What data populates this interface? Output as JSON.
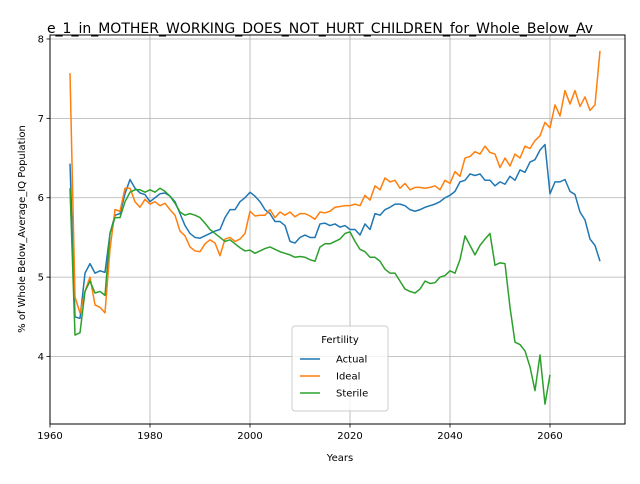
{
  "chart_data": {
    "type": "line",
    "title": "e_1_in_MOTHER_WORKING_DOES_NOT_HURT_CHILDREN_for_Whole_Below_Av",
    "xlabel": "Years",
    "ylabel": "% of Whole Below_Average_IQ Population",
    "xlim": [
      1960,
      2075
    ],
    "ylim": [
      3.15,
      8.05
    ],
    "xticks": [
      1960,
      1980,
      2000,
      2020,
      2040,
      2060
    ],
    "yticks": [
      4,
      5,
      6,
      7,
      8
    ],
    "grid": true,
    "legend": {
      "title": "Fertility",
      "placement": "lower center"
    },
    "series": [
      {
        "name": "Actual",
        "color": "#1f77b4",
        "points": [
          [
            1964,
            6.43
          ],
          [
            1965,
            4.5
          ],
          [
            1966,
            4.48
          ],
          [
            1967,
            5.05
          ],
          [
            1968,
            5.17
          ],
          [
            1969,
            5.05
          ],
          [
            1970,
            5.08
          ],
          [
            1971,
            5.06
          ],
          [
            1972,
            5.55
          ],
          [
            1973,
            5.78
          ],
          [
            1974,
            5.8
          ],
          [
            1975,
            6.05
          ],
          [
            1976,
            6.23
          ],
          [
            1977,
            6.12
          ],
          [
            1978,
            6.06
          ],
          [
            1979,
            6.04
          ],
          [
            1980,
            5.95
          ],
          [
            1981,
            6.0
          ],
          [
            1982,
            6.05
          ],
          [
            1983,
            6.06
          ],
          [
            1984,
            6.02
          ],
          [
            1985,
            5.95
          ],
          [
            1986,
            5.8
          ],
          [
            1987,
            5.65
          ],
          [
            1988,
            5.55
          ],
          [
            1989,
            5.5
          ],
          [
            1990,
            5.49
          ],
          [
            1991,
            5.52
          ],
          [
            1992,
            5.55
          ],
          [
            1993,
            5.58
          ],
          [
            1994,
            5.6
          ],
          [
            1995,
            5.75
          ],
          [
            1996,
            5.85
          ],
          [
            1997,
            5.85
          ],
          [
            1998,
            5.95
          ],
          [
            1999,
            6.0
          ],
          [
            2000,
            6.07
          ],
          [
            2001,
            6.02
          ],
          [
            2002,
            5.95
          ],
          [
            2003,
            5.85
          ],
          [
            2004,
            5.8
          ],
          [
            2005,
            5.7
          ],
          [
            2006,
            5.7
          ],
          [
            2007,
            5.65
          ],
          [
            2008,
            5.45
          ],
          [
            2009,
            5.43
          ],
          [
            2010,
            5.5
          ],
          [
            2011,
            5.53
          ],
          [
            2012,
            5.5
          ],
          [
            2013,
            5.5
          ],
          [
            2014,
            5.67
          ],
          [
            2015,
            5.68
          ],
          [
            2016,
            5.65
          ],
          [
            2017,
            5.67
          ],
          [
            2018,
            5.63
          ],
          [
            2019,
            5.65
          ],
          [
            2020,
            5.6
          ],
          [
            2021,
            5.6
          ],
          [
            2022,
            5.53
          ],
          [
            2023,
            5.67
          ],
          [
            2024,
            5.6
          ],
          [
            2025,
            5.8
          ],
          [
            2026,
            5.78
          ],
          [
            2027,
            5.85
          ],
          [
            2028,
            5.88
          ],
          [
            2029,
            5.92
          ],
          [
            2030,
            5.92
          ],
          [
            2031,
            5.9
          ],
          [
            2032,
            5.85
          ],
          [
            2033,
            5.83
          ],
          [
            2034,
            5.85
          ],
          [
            2035,
            5.88
          ],
          [
            2036,
            5.9
          ],
          [
            2037,
            5.92
          ],
          [
            2038,
            5.95
          ],
          [
            2039,
            6.0
          ],
          [
            2040,
            6.03
          ],
          [
            2041,
            6.08
          ],
          [
            2042,
            6.2
          ],
          [
            2043,
            6.22
          ],
          [
            2044,
            6.3
          ],
          [
            2045,
            6.28
          ],
          [
            2046,
            6.3
          ],
          [
            2047,
            6.22
          ],
          [
            2048,
            6.22
          ],
          [
            2049,
            6.15
          ],
          [
            2050,
            6.2
          ],
          [
            2051,
            6.17
          ],
          [
            2052,
            6.27
          ],
          [
            2053,
            6.22
          ],
          [
            2054,
            6.35
          ],
          [
            2055,
            6.32
          ],
          [
            2056,
            6.45
          ],
          [
            2057,
            6.48
          ],
          [
            2058,
            6.6
          ],
          [
            2059,
            6.67
          ],
          [
            2060,
            6.05
          ],
          [
            2061,
            6.2
          ],
          [
            2062,
            6.2
          ],
          [
            2063,
            6.23
          ],
          [
            2064,
            6.08
          ],
          [
            2065,
            6.04
          ],
          [
            2066,
            5.82
          ],
          [
            2067,
            5.72
          ],
          [
            2068,
            5.48
          ],
          [
            2069,
            5.4
          ],
          [
            2070,
            5.2
          ]
        ]
      },
      {
        "name": "Ideal",
        "color": "#ff7f0e",
        "points": [
          [
            1964,
            7.57
          ],
          [
            1965,
            4.75
          ],
          [
            1966,
            4.55
          ],
          [
            1967,
            4.82
          ],
          [
            1968,
            5.0
          ],
          [
            1969,
            4.65
          ],
          [
            1970,
            4.62
          ],
          [
            1971,
            4.55
          ],
          [
            1972,
            5.35
          ],
          [
            1973,
            5.85
          ],
          [
            1974,
            5.83
          ],
          [
            1975,
            6.12
          ],
          [
            1976,
            6.12
          ],
          [
            1977,
            5.95
          ],
          [
            1978,
            5.88
          ],
          [
            1979,
            5.98
          ],
          [
            1980,
            5.92
          ],
          [
            1981,
            5.95
          ],
          [
            1982,
            5.9
          ],
          [
            1983,
            5.93
          ],
          [
            1984,
            5.85
          ],
          [
            1985,
            5.78
          ],
          [
            1986,
            5.58
          ],
          [
            1987,
            5.52
          ],
          [
            1988,
            5.38
          ],
          [
            1989,
            5.33
          ],
          [
            1990,
            5.32
          ],
          [
            1991,
            5.42
          ],
          [
            1992,
            5.47
          ],
          [
            1993,
            5.43
          ],
          [
            1994,
            5.27
          ],
          [
            1995,
            5.48
          ],
          [
            1996,
            5.5
          ],
          [
            1997,
            5.45
          ],
          [
            1998,
            5.48
          ],
          [
            1999,
            5.55
          ],
          [
            2000,
            5.83
          ],
          [
            2001,
            5.77
          ],
          [
            2002,
            5.78
          ],
          [
            2003,
            5.78
          ],
          [
            2004,
            5.85
          ],
          [
            2005,
            5.75
          ],
          [
            2006,
            5.82
          ],
          [
            2007,
            5.78
          ],
          [
            2008,
            5.82
          ],
          [
            2009,
            5.76
          ],
          [
            2010,
            5.8
          ],
          [
            2011,
            5.8
          ],
          [
            2012,
            5.77
          ],
          [
            2013,
            5.73
          ],
          [
            2014,
            5.82
          ],
          [
            2015,
            5.81
          ],
          [
            2016,
            5.83
          ],
          [
            2017,
            5.88
          ],
          [
            2018,
            5.89
          ],
          [
            2019,
            5.9
          ],
          [
            2020,
            5.9
          ],
          [
            2021,
            5.92
          ],
          [
            2022,
            5.9
          ],
          [
            2023,
            6.03
          ],
          [
            2024,
            5.97
          ],
          [
            2025,
            6.15
          ],
          [
            2026,
            6.1
          ],
          [
            2027,
            6.25
          ],
          [
            2028,
            6.2
          ],
          [
            2029,
            6.22
          ],
          [
            2030,
            6.12
          ],
          [
            2031,
            6.18
          ],
          [
            2032,
            6.1
          ],
          [
            2033,
            6.13
          ],
          [
            2034,
            6.13
          ],
          [
            2035,
            6.12
          ],
          [
            2036,
            6.13
          ],
          [
            2037,
            6.15
          ],
          [
            2038,
            6.1
          ],
          [
            2039,
            6.22
          ],
          [
            2040,
            6.18
          ],
          [
            2041,
            6.33
          ],
          [
            2042,
            6.27
          ],
          [
            2043,
            6.5
          ],
          [
            2044,
            6.52
          ],
          [
            2045,
            6.58
          ],
          [
            2046,
            6.55
          ],
          [
            2047,
            6.65
          ],
          [
            2048,
            6.57
          ],
          [
            2049,
            6.55
          ],
          [
            2050,
            6.38
          ],
          [
            2051,
            6.5
          ],
          [
            2052,
            6.4
          ],
          [
            2053,
            6.55
          ],
          [
            2054,
            6.5
          ],
          [
            2055,
            6.65
          ],
          [
            2056,
            6.62
          ],
          [
            2057,
            6.72
          ],
          [
            2058,
            6.78
          ],
          [
            2059,
            6.95
          ],
          [
            2060,
            6.88
          ],
          [
            2061,
            7.17
          ],
          [
            2062,
            7.03
          ],
          [
            2063,
            7.35
          ],
          [
            2064,
            7.18
          ],
          [
            2065,
            7.35
          ],
          [
            2066,
            7.15
          ],
          [
            2067,
            7.27
          ],
          [
            2068,
            7.1
          ],
          [
            2069,
            7.17
          ],
          [
            2070,
            7.85
          ]
        ]
      },
      {
        "name": "Sterile",
        "color": "#2ca02c",
        "points": [
          [
            1964,
            6.12
          ],
          [
            1965,
            4.27
          ],
          [
            1966,
            4.3
          ],
          [
            1967,
            4.82
          ],
          [
            1968,
            4.95
          ],
          [
            1969,
            4.8
          ],
          [
            1970,
            4.82
          ],
          [
            1971,
            4.77
          ],
          [
            1972,
            5.55
          ],
          [
            1973,
            5.75
          ],
          [
            1974,
            5.75
          ],
          [
            1975,
            5.95
          ],
          [
            1976,
            6.07
          ],
          [
            1977,
            6.1
          ],
          [
            1978,
            6.1
          ],
          [
            1979,
            6.07
          ],
          [
            1980,
            6.1
          ],
          [
            1981,
            6.07
          ],
          [
            1982,
            6.12
          ],
          [
            1983,
            6.08
          ],
          [
            1984,
            6.02
          ],
          [
            1985,
            5.93
          ],
          [
            1986,
            5.82
          ],
          [
            1987,
            5.78
          ],
          [
            1988,
            5.8
          ],
          [
            1989,
            5.78
          ],
          [
            1990,
            5.75
          ],
          [
            1991,
            5.68
          ],
          [
            1992,
            5.6
          ],
          [
            1993,
            5.55
          ],
          [
            1994,
            5.5
          ],
          [
            1995,
            5.45
          ],
          [
            1996,
            5.47
          ],
          [
            1997,
            5.42
          ],
          [
            1998,
            5.37
          ],
          [
            1999,
            5.33
          ],
          [
            2000,
            5.34
          ],
          [
            2001,
            5.3
          ],
          [
            2002,
            5.33
          ],
          [
            2003,
            5.36
          ],
          [
            2004,
            5.38
          ],
          [
            2005,
            5.35
          ],
          [
            2006,
            5.32
          ],
          [
            2007,
            5.3
          ],
          [
            2008,
            5.28
          ],
          [
            2009,
            5.25
          ],
          [
            2010,
            5.26
          ],
          [
            2011,
            5.25
          ],
          [
            2012,
            5.22
          ],
          [
            2013,
            5.2
          ],
          [
            2014,
            5.38
          ],
          [
            2015,
            5.42
          ],
          [
            2016,
            5.42
          ],
          [
            2017,
            5.45
          ],
          [
            2018,
            5.48
          ],
          [
            2019,
            5.55
          ],
          [
            2020,
            5.57
          ],
          [
            2021,
            5.45
          ],
          [
            2022,
            5.35
          ],
          [
            2023,
            5.32
          ],
          [
            2024,
            5.25
          ],
          [
            2025,
            5.25
          ],
          [
            2026,
            5.2
          ],
          [
            2027,
            5.1
          ],
          [
            2028,
            5.05
          ],
          [
            2029,
            5.05
          ],
          [
            2030,
            4.95
          ],
          [
            2031,
            4.85
          ],
          [
            2032,
            4.82
          ],
          [
            2033,
            4.8
          ],
          [
            2034,
            4.85
          ],
          [
            2035,
            4.95
          ],
          [
            2036,
            4.92
          ],
          [
            2037,
            4.93
          ],
          [
            2038,
            5.0
          ],
          [
            2039,
            5.02
          ],
          [
            2040,
            5.08
          ],
          [
            2041,
            5.05
          ],
          [
            2042,
            5.22
          ],
          [
            2043,
            5.52
          ],
          [
            2044,
            5.4
          ],
          [
            2045,
            5.28
          ],
          [
            2046,
            5.4
          ],
          [
            2047,
            5.48
          ],
          [
            2048,
            5.55
          ],
          [
            2049,
            5.15
          ],
          [
            2050,
            5.18
          ],
          [
            2051,
            5.17
          ],
          [
            2052,
            4.62
          ],
          [
            2053,
            4.18
          ],
          [
            2054,
            4.15
          ],
          [
            2055,
            4.07
          ],
          [
            2056,
            3.87
          ],
          [
            2057,
            3.57
          ],
          [
            2058,
            4.02
          ],
          [
            2059,
            3.4
          ],
          [
            2060,
            3.77
          ]
        ]
      }
    ]
  }
}
